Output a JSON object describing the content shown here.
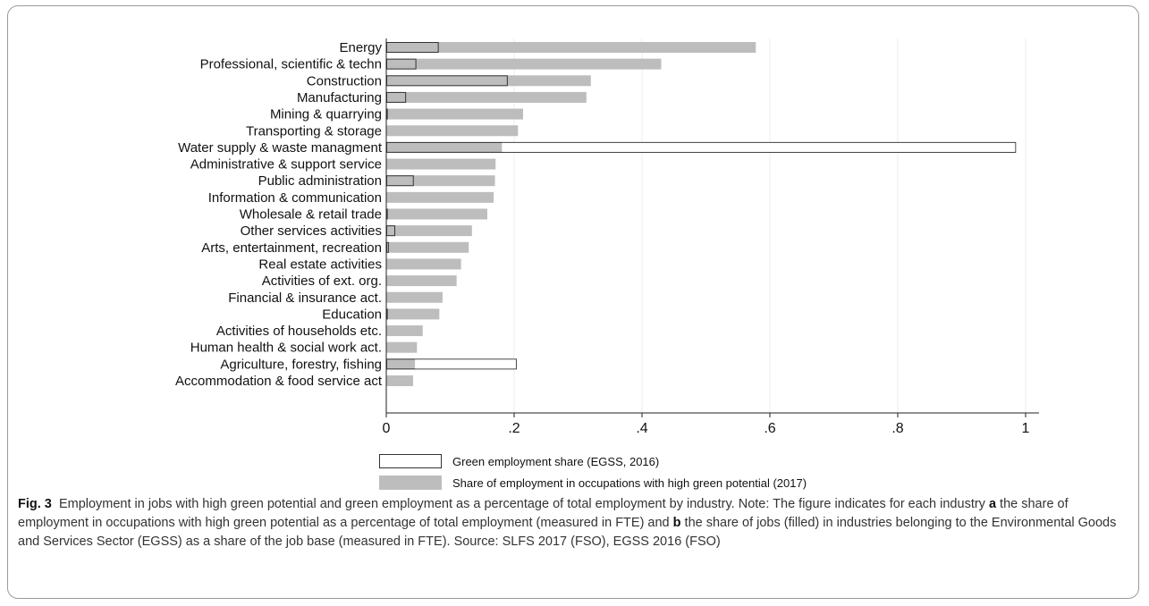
{
  "chart_data": {
    "type": "bar",
    "orientation": "horizontal",
    "categories": [
      "Energy",
      "Professional, scientific & techn",
      "Construction",
      "Manufacturing",
      "Mining & quarrying",
      "Transporting & storage",
      "Water supply & waste managment",
      "Administrative & support service",
      "Public administration",
      "Information & communication",
      "Wholesale & retail trade",
      "Other services activities",
      "Arts, entertainment, recreation",
      "Real estate activities",
      "Activities of ext. org.",
      "Financial & insurance act.",
      "Education",
      "Activities of households etc.",
      "Human health & social work act.",
      "Agriculture, forestry, fishing",
      "Accommodation & food service act"
    ],
    "series": [
      {
        "name": "Share of employment in occupations with high green potential (2017)",
        "style": "filled",
        "color": "#bdbdbd",
        "values": [
          0.578,
          0.43,
          0.32,
          0.313,
          0.214,
          0.206,
          0.181,
          0.171,
          0.17,
          0.168,
          0.158,
          0.134,
          0.129,
          0.117,
          0.11,
          0.088,
          0.083,
          0.057,
          0.048,
          0.045,
          0.042
        ]
      },
      {
        "name": "Green employment share (EGSS, 2016)",
        "style": "outline",
        "color": "#ffffff",
        "values": [
          0.082,
          0.047,
          0.19,
          0.031,
          0.002,
          0.0,
          0.985,
          0.0,
          0.043,
          0.0,
          0.001,
          0.014,
          0.004,
          0.0,
          0.0,
          0.0,
          0.002,
          0.0,
          0.0,
          0.204,
          0.0
        ]
      }
    ],
    "xlim": [
      0,
      1.0
    ],
    "xticks": [
      0,
      0.2,
      0.4,
      0.6,
      0.8,
      1
    ],
    "xtick_labels": [
      "0",
      ".2",
      ".4",
      ".6",
      ".8",
      "1"
    ],
    "grid": "vertical",
    "legend_position": "bottom",
    "xlabel": "",
    "ylabel": ""
  },
  "caption": {
    "fig_label": "Fig. 3",
    "part1": "Employment in jobs with high green potential and green employment as a percentage of total employment by industry. Note: The figure indicates for each industry ",
    "a": "a",
    "part2": " the share of employment in occupations with high green potential as a percentage of total employment (measured in FTE) and ",
    "b": "b",
    "part3": " the share of jobs (filled) in industries belonging to the Environmental Goods and Services Sector (EGSS) as a share of the job base (measured in FTE). Source: SLFS 2017 (FSO), EGSS 2016 (FSO)"
  }
}
